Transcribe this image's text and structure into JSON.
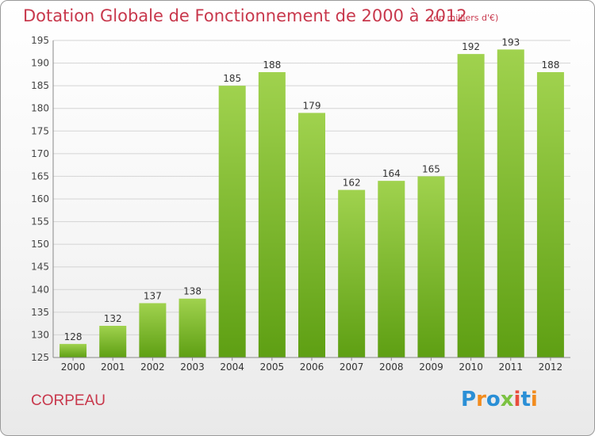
{
  "title": "Dotation Globale de Fonctionnement de 2000 à 2012",
  "subtitle": "(en milliers d'€)",
  "commune": "CORPEAU",
  "logo": {
    "text": "Proxiti",
    "letters": [
      {
        "char": "P",
        "color": "#2a8fd6"
      },
      {
        "char": "r",
        "color": "#f28c1e"
      },
      {
        "char": "o",
        "color": "#2a8fd6"
      },
      {
        "char": "x",
        "color": "#7cc242"
      },
      {
        "char": "i",
        "color": "#e84d3d"
      },
      {
        "char": "t",
        "color": "#2a8fd6"
      },
      {
        "char": "i",
        "color": "#f28c1e"
      }
    ]
  },
  "colors": {
    "bar_top": "#a0d24e",
    "bar_bottom": "#5e9f13",
    "title": "#c8384c",
    "grid": "#d4d4d4"
  },
  "chart_data": {
    "type": "bar",
    "title": "Dotation Globale de Fonctionnement de 2000 à 2012",
    "subtitle": "(en milliers d'€)",
    "categories": [
      "2000",
      "2001",
      "2002",
      "2003",
      "2004",
      "2005",
      "2006",
      "2007",
      "2008",
      "2009",
      "2010",
      "2011",
      "2012"
    ],
    "values": [
      128,
      132,
      137,
      138,
      185,
      188,
      179,
      162,
      164,
      165,
      192,
      193,
      188
    ],
    "ylim": [
      125,
      195
    ],
    "yticks": [
      125,
      130,
      135,
      140,
      145,
      150,
      155,
      160,
      165,
      170,
      175,
      180,
      185,
      190,
      195
    ],
    "grid": true,
    "data_labels": true
  }
}
